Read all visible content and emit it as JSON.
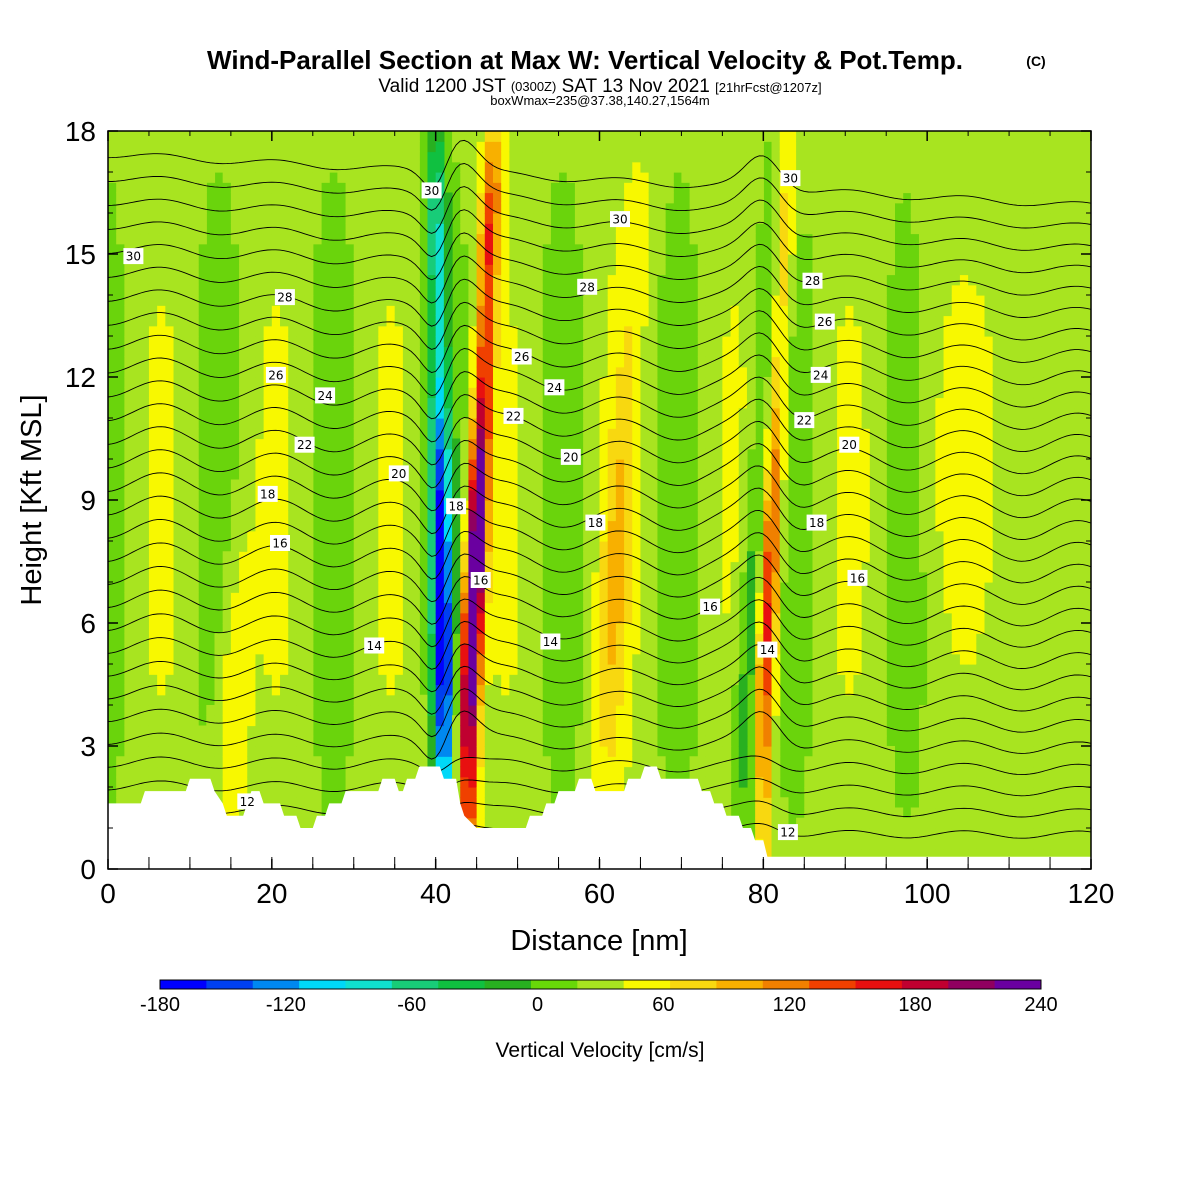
{
  "title": {
    "main": "Wind-Parallel Section at Max W: Vertical Velocity & Pot.Temp.",
    "mark": "(C)",
    "valid_prefix": "Valid 1200 JST",
    "valid_utc": "(0300Z)",
    "valid_date": "SAT 13 Nov 2021",
    "forecast": "[21hrFcst@1207z]",
    "boxwmax": "boxWmax=235@37.38,140.27,1564m"
  },
  "colors": {
    "terrain": "#ffffff",
    "contour": "#000000",
    "frame": "#000000",
    "scale": [
      "#0000ff",
      "#0040f0",
      "#0088f0",
      "#00d8f8",
      "#10e0d0",
      "#18cc78",
      "#10c040",
      "#28b020",
      "#68d808",
      "#a8e420",
      "#f8f800",
      "#f8d810",
      "#f8b000",
      "#f08000",
      "#f04000",
      "#e81010",
      "#c00030",
      "#900060",
      "#6a00a0"
    ]
  },
  "chart_data": {
    "type": "heatmap",
    "xlabel": "Distance [nm]",
    "ylabel": "Height [Kft MSL]",
    "xlim": [
      0,
      120
    ],
    "ylim": [
      0,
      18
    ],
    "xticks": [
      "0",
      "20",
      "40",
      "60",
      "80",
      "100",
      "120"
    ],
    "yticks": [
      "0",
      "3",
      "6",
      "9",
      "12",
      "15",
      "18"
    ],
    "field": "Vertical Velocity",
    "colorbar": {
      "label": "Vertical Velocity [cm/s]",
      "levels": [
        -180,
        -160,
        -140,
        -120,
        -100,
        -80,
        -60,
        -40,
        -20,
        0,
        20,
        40,
        60,
        80,
        100,
        120,
        140,
        160,
        180,
        200
      ],
      "tick_labels": [
        "-180",
        "-120",
        "-60",
        "0",
        "60",
        "120",
        "180",
        "240"
      ]
    },
    "max_vertical_velocity": 235,
    "max_location": "37.38,140.27,1564m",
    "updrafts": [
      {
        "x_bottom": 44,
        "x_top": 47,
        "z_bottom": 3.5,
        "z_top": 17.5,
        "w_max": 235
      },
      {
        "x_bottom": 80,
        "x_top": 83,
        "z_bottom": 3.8,
        "z_top": 17.5,
        "w_max": 150
      },
      {
        "x_bottom": 61,
        "x_top": 65,
        "z_bottom": 4,
        "z_top": 17,
        "w_max": 45
      },
      {
        "x_bottom": 15,
        "x_top": 16,
        "z_bottom": 2,
        "z_top": 9,
        "w_max": 40
      }
    ],
    "downdrafts": [
      {
        "x_bottom": 41,
        "x_top": 40,
        "z_bottom": 3,
        "z_top": 17.5,
        "w_min": -185
      },
      {
        "x_bottom": 78,
        "x_top": 82,
        "z_bottom": 3,
        "z_top": 17,
        "w_min": -55
      }
    ],
    "theta_contours": {
      "field": "Potential Temperature",
      "labels": [
        {
          "text": "30",
          "x": 3.1,
          "z": 14.95
        },
        {
          "text": "28",
          "x": 21.6,
          "z": 13.95
        },
        {
          "text": "26",
          "x": 20.5,
          "z": 12.05
        },
        {
          "text": "24",
          "x": 26.5,
          "z": 11.55
        },
        {
          "text": "22",
          "x": 24,
          "z": 10.35
        },
        {
          "text": "18",
          "x": 19.5,
          "z": 9.15
        },
        {
          "text": "16",
          "x": 21,
          "z": 7.95
        },
        {
          "text": "20",
          "x": 35.5,
          "z": 9.65
        },
        {
          "text": "30",
          "x": 39.5,
          "z": 16.55
        },
        {
          "text": "14",
          "x": 32.5,
          "z": 5.45
        },
        {
          "text": "18",
          "x": 42.5,
          "z": 8.85
        },
        {
          "text": "16",
          "x": 45.5,
          "z": 7.05
        },
        {
          "text": "26",
          "x": 50.5,
          "z": 12.5
        },
        {
          "text": "22",
          "x": 49.5,
          "z": 11.05
        },
        {
          "text": "24",
          "x": 54.5,
          "z": 11.75
        },
        {
          "text": "14",
          "x": 54,
          "z": 5.55
        },
        {
          "text": "30",
          "x": 62.5,
          "z": 15.85
        },
        {
          "text": "28",
          "x": 58.5,
          "z": 14.2
        },
        {
          "text": "20",
          "x": 56.5,
          "z": 10.05
        },
        {
          "text": "18",
          "x": 59.5,
          "z": 8.45
        },
        {
          "text": "16",
          "x": 73.5,
          "z": 6.4
        },
        {
          "text": "30",
          "x": 83.3,
          "z": 16.85
        },
        {
          "text": "28",
          "x": 86,
          "z": 14.35
        },
        {
          "text": "26",
          "x": 87.5,
          "z": 13.35
        },
        {
          "text": "24",
          "x": 87,
          "z": 12.05
        },
        {
          "text": "22",
          "x": 85,
          "z": 10.95
        },
        {
          "text": "20",
          "x": 90.5,
          "z": 10.35
        },
        {
          "text": "18",
          "x": 86.5,
          "z": 8.45
        },
        {
          "text": "16",
          "x": 91.5,
          "z": 7.1
        },
        {
          "text": "14",
          "x": 80.5,
          "z": 5.35
        },
        {
          "text": "12",
          "x": 17,
          "z": 1.65
        },
        {
          "text": "12",
          "x": 83,
          "z": 0.9
        }
      ]
    },
    "terrain_profile": [
      [
        0,
        1.6
      ],
      [
        4,
        1.6
      ],
      [
        4.5,
        1.9
      ],
      [
        9.5,
        1.9
      ],
      [
        10,
        2.2
      ],
      [
        12.5,
        2.2
      ],
      [
        13,
        1.9
      ],
      [
        14,
        1.6
      ],
      [
        14.5,
        1.3
      ],
      [
        16.5,
        1.3
      ],
      [
        17,
        1.6
      ],
      [
        17.5,
        1.9
      ],
      [
        18.5,
        1.9
      ],
      [
        19,
        1.6
      ],
      [
        21,
        1.6
      ],
      [
        21.5,
        1.3
      ],
      [
        23,
        1.3
      ],
      [
        23.5,
        1.0
      ],
      [
        25,
        1.0
      ],
      [
        25.5,
        1.3
      ],
      [
        26.5,
        1.3
      ],
      [
        27,
        1.6
      ],
      [
        28.5,
        1.6
      ],
      [
        29,
        1.9
      ],
      [
        33,
        1.9
      ],
      [
        33.5,
        2.2
      ],
      [
        35,
        2.2
      ],
      [
        35.5,
        1.9
      ],
      [
        36,
        1.9
      ],
      [
        36.5,
        2.2
      ],
      [
        37.5,
        2.2
      ],
      [
        38,
        2.5
      ],
      [
        40.5,
        2.5
      ],
      [
        41,
        2.2
      ],
      [
        42.5,
        2.2
      ],
      [
        43,
        1.6
      ],
      [
        43.5,
        1.3
      ],
      [
        45,
        1.0
      ],
      [
        51,
        1.0
      ],
      [
        51.5,
        1.3
      ],
      [
        53,
        1.3
      ],
      [
        53.5,
        1.6
      ],
      [
        54.5,
        1.6
      ],
      [
        55,
        1.9
      ],
      [
        57,
        1.9
      ],
      [
        57.5,
        2.2
      ],
      [
        59,
        2.2
      ],
      [
        59.5,
        1.9
      ],
      [
        63,
        1.9
      ],
      [
        63.5,
        2.2
      ],
      [
        65,
        2.2
      ],
      [
        65.5,
        2.5
      ],
      [
        67,
        2.5
      ],
      [
        67.5,
        2.2
      ],
      [
        72,
        2.2
      ],
      [
        72.5,
        1.9
      ],
      [
        73.5,
        1.9
      ],
      [
        74,
        1.6
      ],
      [
        75,
        1.6
      ],
      [
        75.5,
        1.3
      ],
      [
        77,
        1.3
      ],
      [
        77.5,
        1.0
      ],
      [
        78.5,
        1.0
      ],
      [
        79,
        0.7
      ],
      [
        80,
        0.7
      ],
      [
        80.5,
        0.3
      ],
      [
        120,
        0.3
      ]
    ]
  }
}
